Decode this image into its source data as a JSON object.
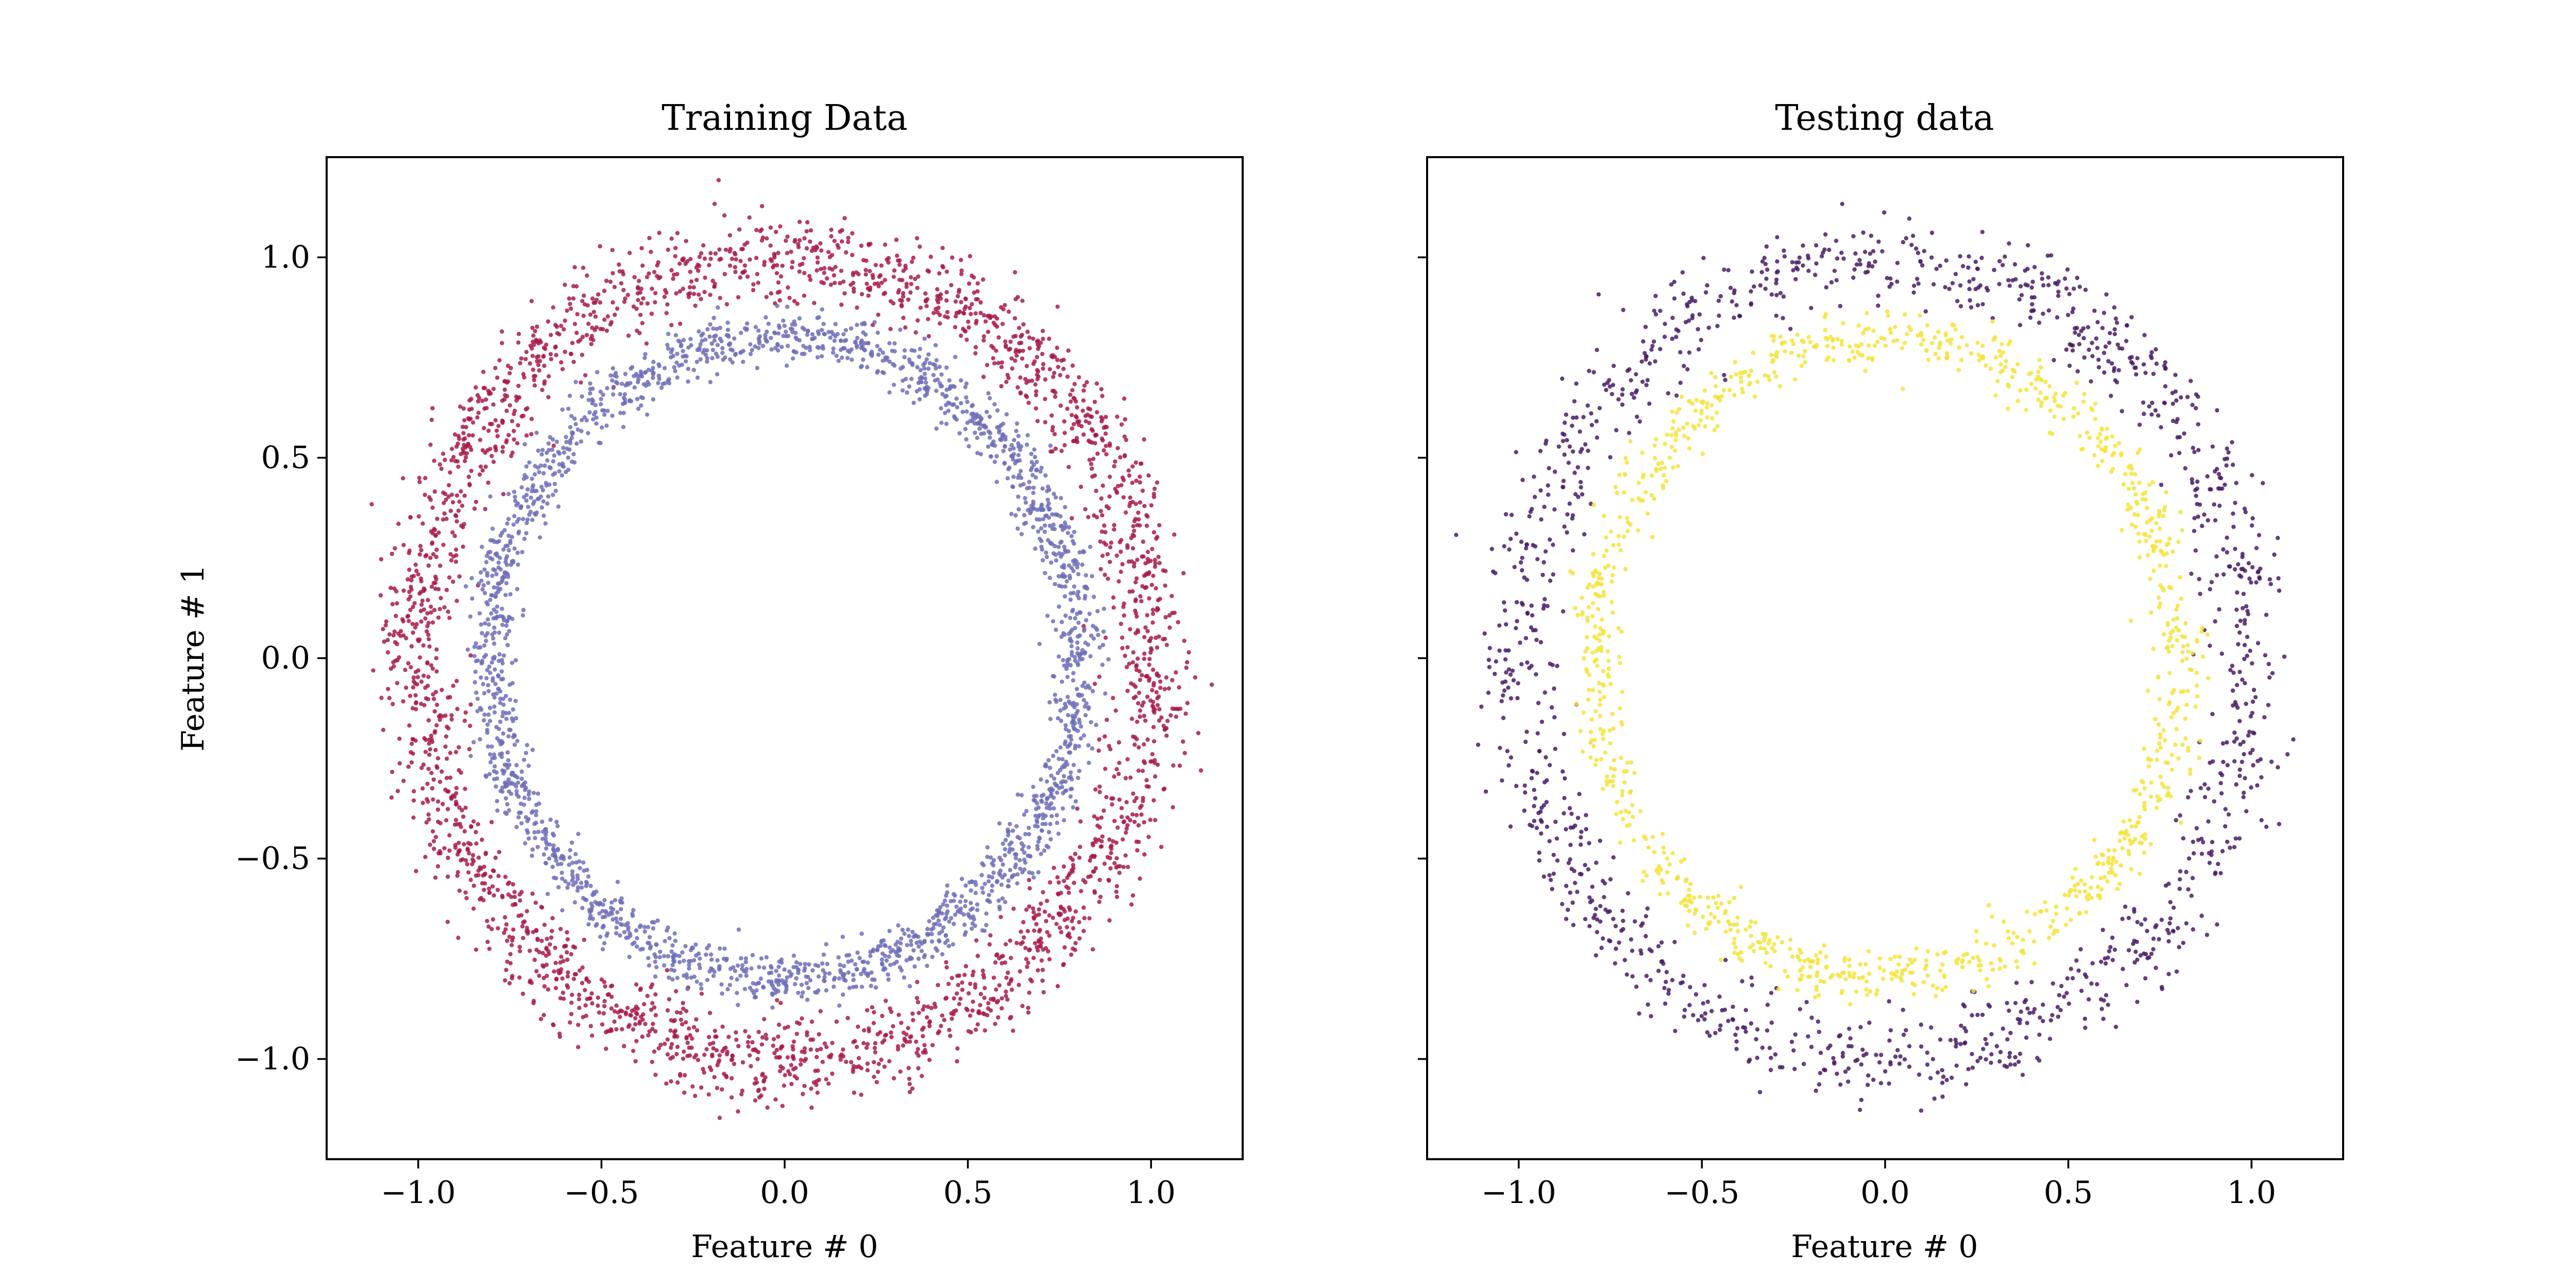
{
  "chart_data": [
    {
      "type": "scatter",
      "title": "Training Data",
      "xlabel": "Feature # 0",
      "ylabel": "Feature # 1",
      "xlim": [
        -1.25,
        1.25
      ],
      "ylim": [
        -1.25,
        1.25
      ],
      "xticks": [
        "−1.0",
        "−0.5",
        "0.0",
        "0.5",
        "1.0"
      ],
      "yticks": [
        "−1.0",
        "−0.5",
        "0.0",
        "0.5",
        "1.0"
      ],
      "grid": false,
      "description_of_distribution": "two concentric noisy rings",
      "series": [
        {
          "color": "#a81b4a",
          "radius_mean": 1.0,
          "radius_spread": 0.1,
          "point_count": 2600
        },
        {
          "color": "#6e6fb8",
          "radius_mean": 0.8,
          "radius_spread": 0.06,
          "point_count": 2200
        }
      ]
    },
    {
      "type": "scatter",
      "title": "Testing data",
      "xlabel": "Feature # 0",
      "ylabel": "",
      "xlim": [
        -1.25,
        1.25
      ],
      "ylim": [
        -1.25,
        1.25
      ],
      "xticks": [
        "−1.0",
        "−0.5",
        "0.0",
        "0.5",
        "1.0"
      ],
      "yticks": [
        "",
        "",
        "",
        "",
        ""
      ],
      "grid": false,
      "series": [
        {
          "color": "#4a1c66",
          "radius_mean": 1.0,
          "radius_spread": 0.1,
          "point_count": 1300
        },
        {
          "color": "#f5e33b",
          "radius_mean": 0.8,
          "radius_spread": 0.06,
          "point_count": 1100
        }
      ]
    }
  ]
}
